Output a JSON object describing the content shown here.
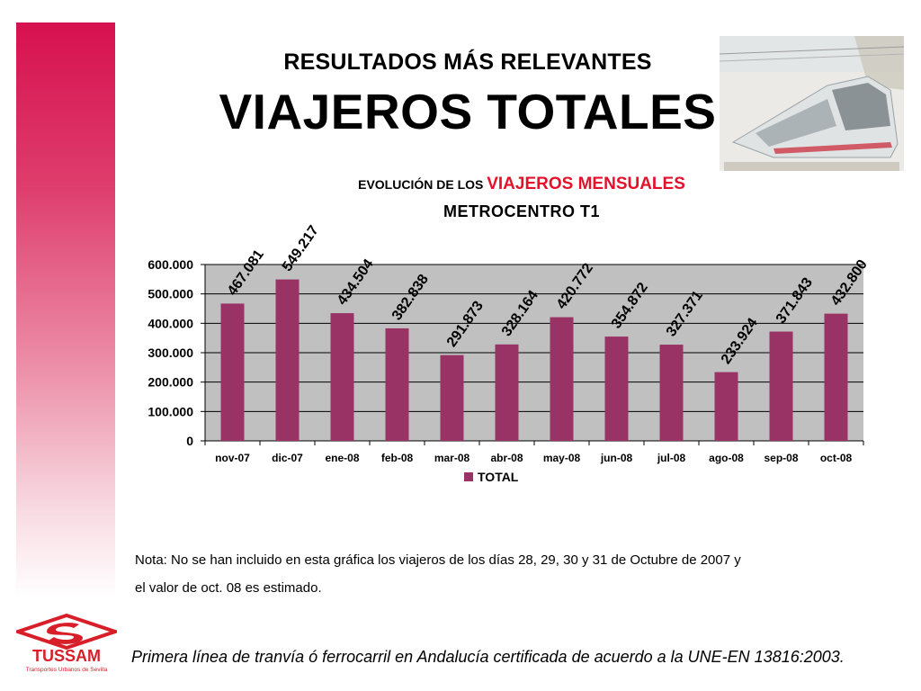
{
  "slide": {
    "subtitle": "RESULTADOS MÁS RELEVANTES",
    "title": "VIAJEROS TOTALES",
    "note_line1": "Nota: No se han incluido en esta gráfica los viajeros de los días 28, 29, 30 y 31 de Octubre de 2007 y",
    "note_line2": "el valor de oct. 08 es estimado.",
    "footer": "Primera línea de tranvía ó ferrocarril en Andalucía certificada de acuerdo a la UNE-EN 13816:2003."
  },
  "logo": {
    "name": "TUSSAM",
    "tagline": "Transportes Urbanos de Sevilla",
    "color": "#d81e29"
  },
  "colors": {
    "accent": "#d6114f",
    "bar": "#993366",
    "plot_bg": "#c0c0c0",
    "highlight": "#e4112b"
  },
  "chart_data": {
    "type": "bar",
    "title_prefix": "EVOLUCIÓN  DE LOS",
    "title_highlight": "VIAJEROS MENSUALES",
    "title_line2": "METROCENTRO  T1",
    "categories": [
      "nov-07",
      "dic-07",
      "ene-08",
      "feb-08",
      "mar-08",
      "abr-08",
      "may-08",
      "jun-08",
      "jul-08",
      "ago-08",
      "sep-08",
      "oct-08"
    ],
    "series": [
      {
        "name": "TOTAL",
        "values": [
          467081,
          549217,
          434504,
          382838,
          291873,
          328164,
          420772,
          354872,
          327371,
          233924,
          371843,
          432800
        ],
        "labels": [
          "467.081",
          "549.217",
          "434.504",
          "382.838",
          "291.873",
          "328.164",
          "420.772",
          "354.872",
          "327.371",
          "233.924",
          "371.843",
          "432.800"
        ]
      }
    ],
    "yticks": [
      0,
      100000,
      200000,
      300000,
      400000,
      500000,
      600000
    ],
    "ytick_labels": [
      "0",
      "100.000",
      "200.000",
      "300.000",
      "400.000",
      "500.000",
      "600.000"
    ],
    "ylim": [
      0,
      600000
    ],
    "grid": true,
    "legend": "bottom"
  }
}
